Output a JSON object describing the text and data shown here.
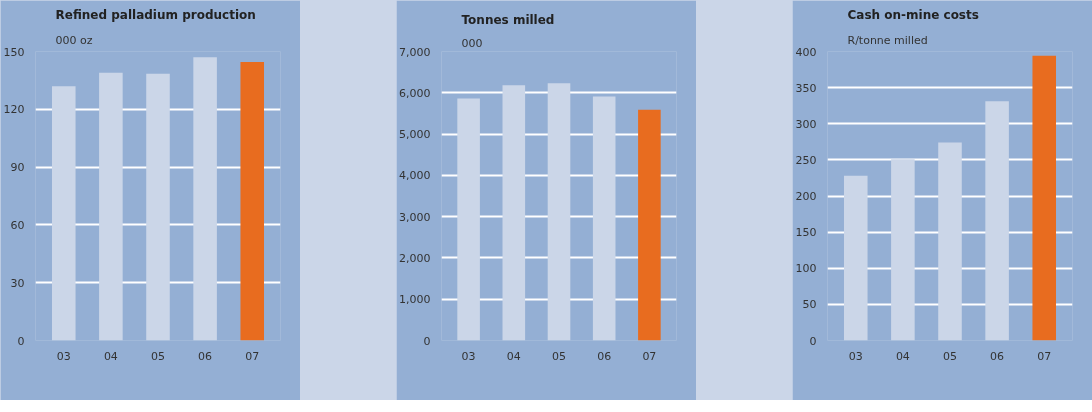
{
  "chart_data": [
    {
      "type": "bar",
      "title": "Refined palladium production",
      "subtitle": "000 oz",
      "categories": [
        "03",
        "04",
        "05",
        "06",
        "07"
      ],
      "values": [
        132,
        139,
        138.5,
        147,
        144.5
      ],
      "colors": [
        "#cbd6e8",
        "#cbd6e8",
        "#cbd6e8",
        "#cbd6e8",
        "#e86c1f"
      ],
      "ylim": [
        0,
        150
      ],
      "yticks": [
        0,
        30,
        60,
        90,
        120,
        150
      ],
      "grid": "y"
    },
    {
      "type": "bar",
      "title": "Tonnes milled",
      "subtitle": "000",
      "categories": [
        "03",
        "04",
        "05",
        "06",
        "07"
      ],
      "values": [
        5860,
        6180,
        6230,
        5910,
        5590
      ],
      "colors": [
        "#cbd6e8",
        "#cbd6e8",
        "#cbd6e8",
        "#cbd6e8",
        "#e86c1f"
      ],
      "ylim": [
        0,
        7000
      ],
      "yticks": [
        0,
        {
          "value": 1000,
          "label": "1,000"
        },
        {
          "value": 2000,
          "label": "2,000"
        },
        {
          "value": 3000,
          "label": "3,000"
        },
        {
          "value": 4000,
          "label": "4,000"
        },
        {
          "value": 5000,
          "label": "5,000"
        },
        {
          "value": 6000,
          "label": "6,000"
        },
        {
          "value": 7000,
          "label": "7,000"
        }
      ],
      "grid": "y"
    },
    {
      "type": "bar",
      "title": "Cash on-mine costs",
      "subtitle": "R/tonne milled",
      "categories": [
        "03",
        "04",
        "05",
        "06",
        "07"
      ],
      "values": [
        228,
        251,
        274,
        331,
        394
      ],
      "colors": [
        "#cbd6e8",
        "#cbd6e8",
        "#cbd6e8",
        "#cbd6e8",
        "#e86c1f"
      ],
      "ylim": [
        0,
        400
      ],
      "yticks": [
        0,
        50,
        100,
        150,
        200,
        250,
        300,
        350,
        400
      ],
      "grid": "y"
    }
  ]
}
